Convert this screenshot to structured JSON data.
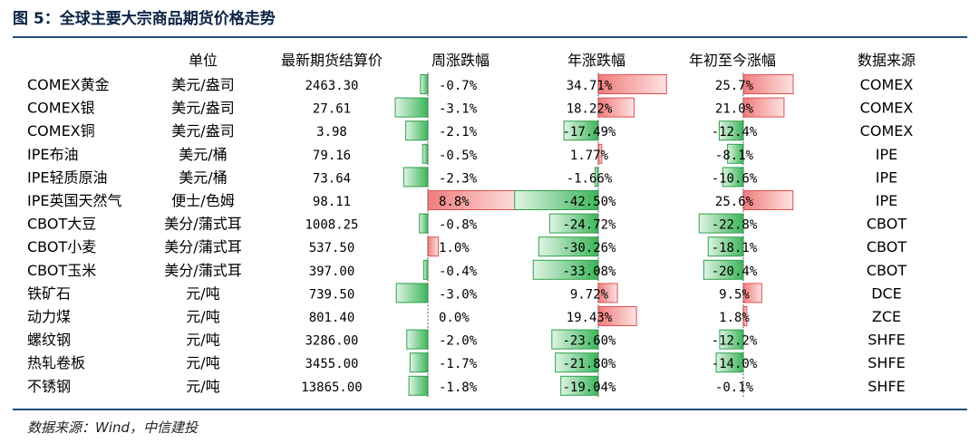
{
  "title": "图 5：全球主要大宗商品期货价格走势",
  "source": "数据来源：Wind，中信建投",
  "colors": {
    "up": "#f07c7c",
    "up_light": "#fde2e2",
    "down": "#3cb55a",
    "down_light": "#dff4e4",
    "rule": "#1f4e79"
  },
  "chart_data": {
    "type": "table",
    "columns": [
      "",
      "单位",
      "最新期货结算价",
      "周涨跌幅",
      "年涨跌幅",
      "年初至今涨幅",
      "数据来源"
    ],
    "rows": [
      {
        "name": "COMEX黄金",
        "unit": "美元/盎司",
        "price": "2463.30",
        "weekly": "-0.7%",
        "annual": "34.71%",
        "ytd": "25.7%",
        "source": "COMEX"
      },
      {
        "name": "COMEX银",
        "unit": "美元/盎司",
        "price": "27.61",
        "weekly": "-3.1%",
        "annual": "18.22%",
        "ytd": "21.0%",
        "source": "COMEX"
      },
      {
        "name": "COMEX铜",
        "unit": "美元/盎司",
        "price": "3.98",
        "weekly": "-2.1%",
        "annual": "-17.49%",
        "ytd": "-12.4%",
        "source": "COMEX"
      },
      {
        "name": "IPE布油",
        "unit": "美元/桶",
        "price": "79.16",
        "weekly": "-0.5%",
        "annual": "1.77%",
        "ytd": "-8.1%",
        "source": "IPE"
      },
      {
        "name": "IPE轻质原油",
        "unit": "美元/桶",
        "price": "73.64",
        "weekly": "-2.3%",
        "annual": "-1.66%",
        "ytd": "-10.6%",
        "source": "IPE"
      },
      {
        "name": "IPE英国天然气",
        "unit": "便士/色姆",
        "price": "98.11",
        "weekly": "8.8%",
        "annual": "-42.50%",
        "ytd": "25.6%",
        "source": "IPE"
      },
      {
        "name": "CBOT大豆",
        "unit": "美分/蒲式耳",
        "price": "1008.25",
        "weekly": "-0.8%",
        "annual": "-24.72%",
        "ytd": "-22.8%",
        "source": "CBOT"
      },
      {
        "name": "CBOT小麦",
        "unit": "美分/蒲式耳",
        "price": "537.50",
        "weekly": "1.0%",
        "annual": "-30.26%",
        "ytd": "-18.1%",
        "source": "CBOT"
      },
      {
        "name": "CBOT玉米",
        "unit": "美分/蒲式耳",
        "price": "397.00",
        "weekly": "-0.4%",
        "annual": "-33.08%",
        "ytd": "-20.4%",
        "source": "CBOT"
      },
      {
        "name": "铁矿石",
        "unit": "元/吨",
        "price": "739.50",
        "weekly": "-3.0%",
        "annual": "9.72%",
        "ytd": "9.5%",
        "source": "DCE"
      },
      {
        "name": "动力煤",
        "unit": "元/吨",
        "price": "801.40",
        "weekly": "0.0%",
        "annual": "19.43%",
        "ytd": "1.8%",
        "source": "ZCE"
      },
      {
        "name": "螺纹钢",
        "unit": "元/吨",
        "price": "3286.00",
        "weekly": "-2.0%",
        "annual": "-23.60%",
        "ytd": "-12.2%",
        "source": "SHFE"
      },
      {
        "name": "热轧卷板",
        "unit": "元/吨",
        "price": "3455.00",
        "weekly": "-1.7%",
        "annual": "-21.80%",
        "ytd": "-14.0%",
        "source": "SHFE"
      },
      {
        "name": "不锈钢",
        "unit": "元/吨",
        "price": "13865.00",
        "weekly": "-1.8%",
        "annual": "-19.04%",
        "ytd": "-0.1%",
        "source": "SHFE"
      }
    ],
    "bar_columns": {
      "weekly": [
        -0.7,
        -3.1,
        -2.1,
        -0.5,
        -2.3,
        8.8,
        -0.8,
        1.0,
        -0.4,
        -3.0,
        0.0,
        -2.0,
        -1.7,
        -1.8
      ],
      "annual": [
        34.71,
        18.22,
        -17.49,
        1.77,
        -1.66,
        -42.5,
        -24.72,
        -30.26,
        -33.08,
        9.72,
        19.43,
        -23.6,
        -21.8,
        -19.04
      ],
      "ytd": [
        25.7,
        21.0,
        -12.4,
        -8.1,
        -10.6,
        25.6,
        -22.8,
        -18.1,
        -20.4,
        9.5,
        1.8,
        -12.2,
        -14.0,
        -0.1
      ]
    }
  }
}
